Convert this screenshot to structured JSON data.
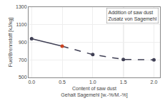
{
  "chart_data": {
    "type": "line",
    "xlabel": "Content of saw dust\nGehalt Sagemehl [w.-%/M.-%]",
    "ylabel": "Fuel/Brennstoff [kJ/kg]",
    "annotations": [
      "Addition of saw dust\nZusatz von Sagemehl"
    ],
    "series": [
      {
        "type": "line",
        "x": [
          0.0,
          0.5
        ],
        "values": [
          940,
          855
        ],
        "color": "#404055",
        "line_style": "solid"
      },
      {
        "type": "line",
        "x": [
          0.5,
          1.0,
          1.5,
          2.0
        ],
        "values": [
          855,
          760,
          705,
          700
        ],
        "color": "#404055",
        "line_style": "dashed"
      },
      {
        "type": "scatter",
        "x": [
          0.0,
          1.0,
          1.5,
          2.0
        ],
        "values": [
          940,
          760,
          705,
          700
        ],
        "color": "#404055",
        "marker": "circle"
      },
      {
        "type": "scatter",
        "x": [
          0.5
        ],
        "values": [
          855
        ],
        "color": "#cc4422",
        "marker": "circle"
      }
    ],
    "vlines": [
      {
        "x": 1.5,
        "color": "#c8c8c8"
      }
    ],
    "xlim": [
      -0.05,
      2.1
    ],
    "xticks": [
      {
        "value": 0,
        "label": "0.0"
      },
      0.5,
      {
        "value": 1,
        "label": "1.0"
      },
      1.5,
      {
        "value": 2,
        "label": "2.0"
      }
    ],
    "ylim": [
      500,
      1300
    ],
    "yticks": [
      500,
      700,
      900,
      1100,
      1300
    ],
    "grid": true
  }
}
